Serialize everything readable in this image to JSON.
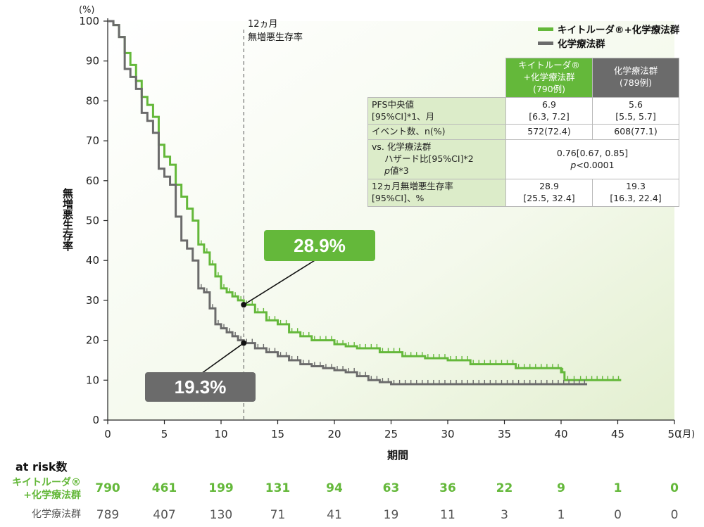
{
  "chart_data": {
    "type": "line",
    "title": "",
    "ylabel": "無増悪生存率",
    "y_unit": "(%)",
    "xlabel": "期間",
    "x_unit": "(月)",
    "xlim": [
      0,
      50
    ],
    "ylim": [
      0,
      100
    ],
    "x_ticks": [
      0,
      5,
      10,
      15,
      20,
      25,
      30,
      35,
      40,
      45,
      50
    ],
    "y_ticks": [
      0,
      10,
      20,
      30,
      40,
      50,
      60,
      70,
      80,
      90,
      100
    ],
    "reference_line": {
      "x": 12,
      "label_line1": "12ヵ月",
      "label_line2": "無増悪生存率"
    },
    "series": [
      {
        "name": "キイトルーダ®+化学療法群",
        "color": "#64b83a",
        "points": [
          [
            0,
            100
          ],
          [
            0.5,
            99
          ],
          [
            1,
            96
          ],
          [
            1.5,
            92
          ],
          [
            2,
            89
          ],
          [
            2.5,
            85
          ],
          [
            3,
            81
          ],
          [
            3.5,
            79
          ],
          [
            4,
            76
          ],
          [
            4.5,
            69
          ],
          [
            5,
            66
          ],
          [
            5.5,
            64
          ],
          [
            6,
            59
          ],
          [
            6.5,
            56
          ],
          [
            7,
            53
          ],
          [
            7.5,
            50
          ],
          [
            8,
            44
          ],
          [
            8.5,
            42
          ],
          [
            9,
            39
          ],
          [
            9.5,
            36
          ],
          [
            10,
            33
          ],
          [
            10.5,
            32
          ],
          [
            11,
            31
          ],
          [
            11.5,
            30
          ],
          [
            12,
            28.9
          ],
          [
            13,
            27
          ],
          [
            14,
            25
          ],
          [
            15,
            24
          ],
          [
            16,
            22
          ],
          [
            17,
            21
          ],
          [
            18,
            20
          ],
          [
            19,
            20
          ],
          [
            20,
            19
          ],
          [
            21,
            18.5
          ],
          [
            22,
            18
          ],
          [
            24,
            17
          ],
          [
            26,
            16
          ],
          [
            28,
            15.5
          ],
          [
            30,
            15
          ],
          [
            32,
            14
          ],
          [
            34,
            14
          ],
          [
            36,
            13
          ],
          [
            38,
            13
          ],
          [
            40,
            12
          ],
          [
            40.3,
            10
          ],
          [
            42,
            10
          ],
          [
            45.3,
            10
          ]
        ],
        "callout": "28.9%"
      },
      {
        "name": "化学療法群",
        "color": "#6b6b6b",
        "points": [
          [
            0,
            100
          ],
          [
            0.5,
            99
          ],
          [
            1,
            96
          ],
          [
            1.5,
            88
          ],
          [
            2,
            86
          ],
          [
            2.5,
            83
          ],
          [
            3,
            77
          ],
          [
            3.5,
            75
          ],
          [
            4,
            72
          ],
          [
            4.5,
            63
          ],
          [
            5,
            61
          ],
          [
            5.5,
            59
          ],
          [
            6,
            51
          ],
          [
            6.5,
            45
          ],
          [
            7,
            43
          ],
          [
            7.5,
            40
          ],
          [
            8,
            33
          ],
          [
            8.5,
            32
          ],
          [
            9,
            28
          ],
          [
            9.5,
            24
          ],
          [
            10,
            23
          ],
          [
            10.5,
            22
          ],
          [
            11,
            21
          ],
          [
            11.5,
            20
          ],
          [
            12,
            19.3
          ],
          [
            13,
            18
          ],
          [
            14,
            17
          ],
          [
            15,
            16
          ],
          [
            16,
            15
          ],
          [
            17,
            14
          ],
          [
            18,
            13.5
          ],
          [
            19,
            13
          ],
          [
            20,
            12.5
          ],
          [
            21,
            12
          ],
          [
            22,
            11
          ],
          [
            23,
            10
          ],
          [
            24,
            9.5
          ],
          [
            25,
            9
          ],
          [
            28,
            9
          ],
          [
            32,
            9
          ],
          [
            36,
            9
          ],
          [
            40,
            9
          ],
          [
            42.3,
            9
          ]
        ],
        "callout": "19.3%"
      }
    ]
  },
  "legend": {
    "pembro": "キイトルーダ®+化学療法群",
    "chemo": "化学療法群"
  },
  "table": {
    "head_pembro_1": "キイトルーダ®",
    "head_pembro_2": "+化学療法群",
    "head_pembro_3": "(790例)",
    "head_chemo_1": "化学療法群",
    "head_chemo_2": "(789例)",
    "pfs_label_1": "PFS中央値",
    "pfs_label_2": "[95%CI]*1、月",
    "pfs_pembro_1": "6.9",
    "pfs_pembro_2": "[6.3, 7.2]",
    "pfs_chemo_1": "5.6",
    "pfs_chemo_2": "[5.5, 5.7]",
    "event_label": "イベント数、n(%)",
    "event_pembro": "572(72.4)",
    "event_chemo": "608(77.1)",
    "hr_label_1": "vs. 化学療法群",
    "hr_label_2": "ハザード比[95%CI]*2",
    "hr_label_3": "値*3",
    "hr_label_3_p": "p",
    "hr_value": "0.76[0.67, 0.85]",
    "p_value_p": "p",
    "p_value": "<0.0001",
    "rate_label_1": "12ヵ月無増悪生存率",
    "rate_label_2": "[95%CI]、%",
    "rate_pembro_1": "28.9",
    "rate_pembro_2": "[25.5, 32.4]",
    "rate_chemo_1": "19.3",
    "rate_chemo_2": "[16.3, 22.4]"
  },
  "at_risk": {
    "title": "at risk数",
    "pembro_label_1": "キイトルーダ®",
    "pembro_label_2": "+化学療法群",
    "chemo_label": "化学療法群",
    "pembro": [
      "790",
      "461",
      "199",
      "131",
      "94",
      "63",
      "36",
      "22",
      "9",
      "1",
      "0"
    ],
    "chemo": [
      "789",
      "407",
      "130",
      "71",
      "41",
      "19",
      "11",
      "3",
      "1",
      "0",
      "0"
    ]
  }
}
